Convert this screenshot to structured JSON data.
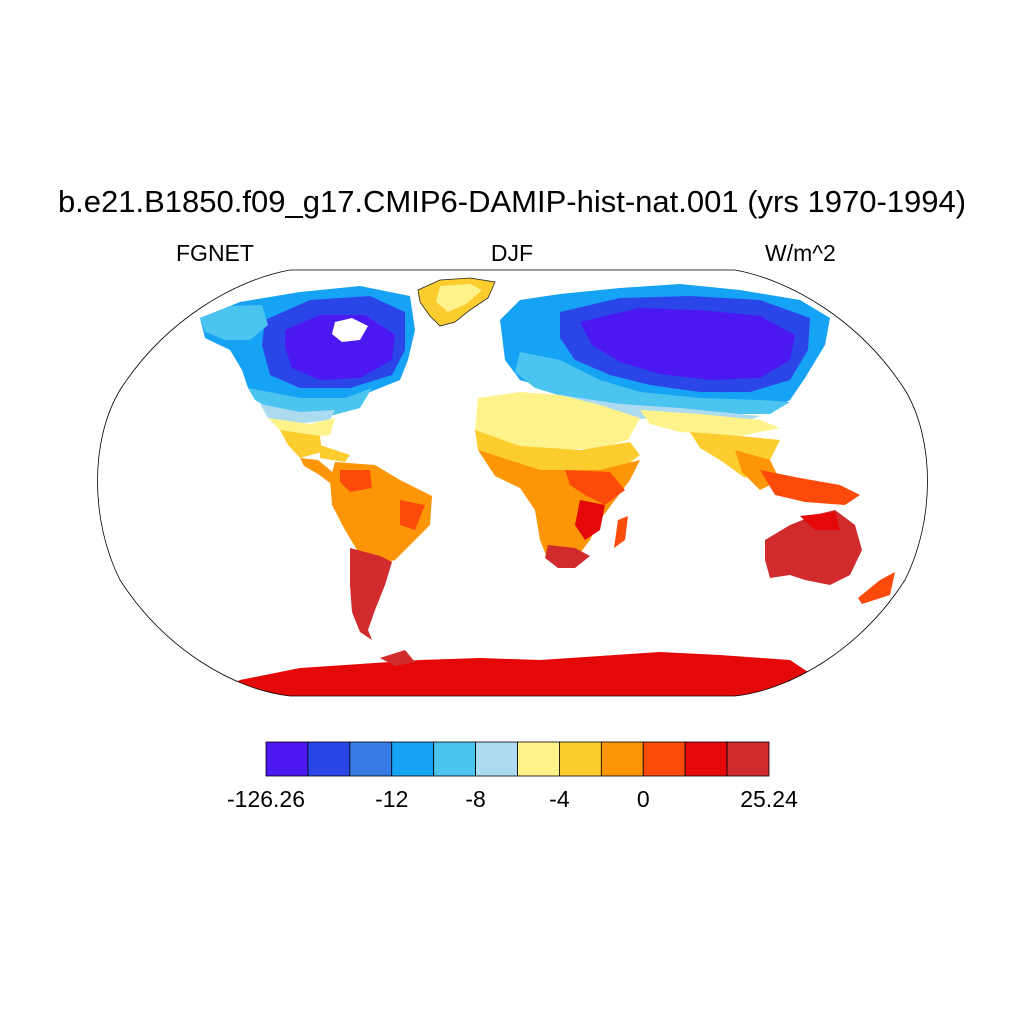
{
  "title": "b.e21.B1850.f09_g17.CMIP6-DAMIP-hist-nat.001 (yrs 1970-1994)",
  "left_label": "FGNET",
  "center_label": "DJF",
  "right_label": "W/m^2",
  "projection": "Robinson",
  "colorbar": {
    "colors": [
      "#4b18f2",
      "#2a46e8",
      "#377ce6",
      "#17a3f5",
      "#4bc4f0",
      "#acdbf0",
      "#fdf38a",
      "#fdcc2e",
      "#fd9606",
      "#fc4a0a",
      "#e50808",
      "#d12b2e"
    ],
    "tick_labels": [
      "-126.26",
      "-12",
      "-8",
      "-4",
      "0",
      "25.24"
    ]
  },
  "legend": {
    "-126.26": "#4b18f2",
    "-12": "#17a3f5",
    "-8": "#acdbf0",
    "-4": "#fdcc2e",
    "0": "#fc4a0a",
    "25.24": "#d12b2e"
  }
}
